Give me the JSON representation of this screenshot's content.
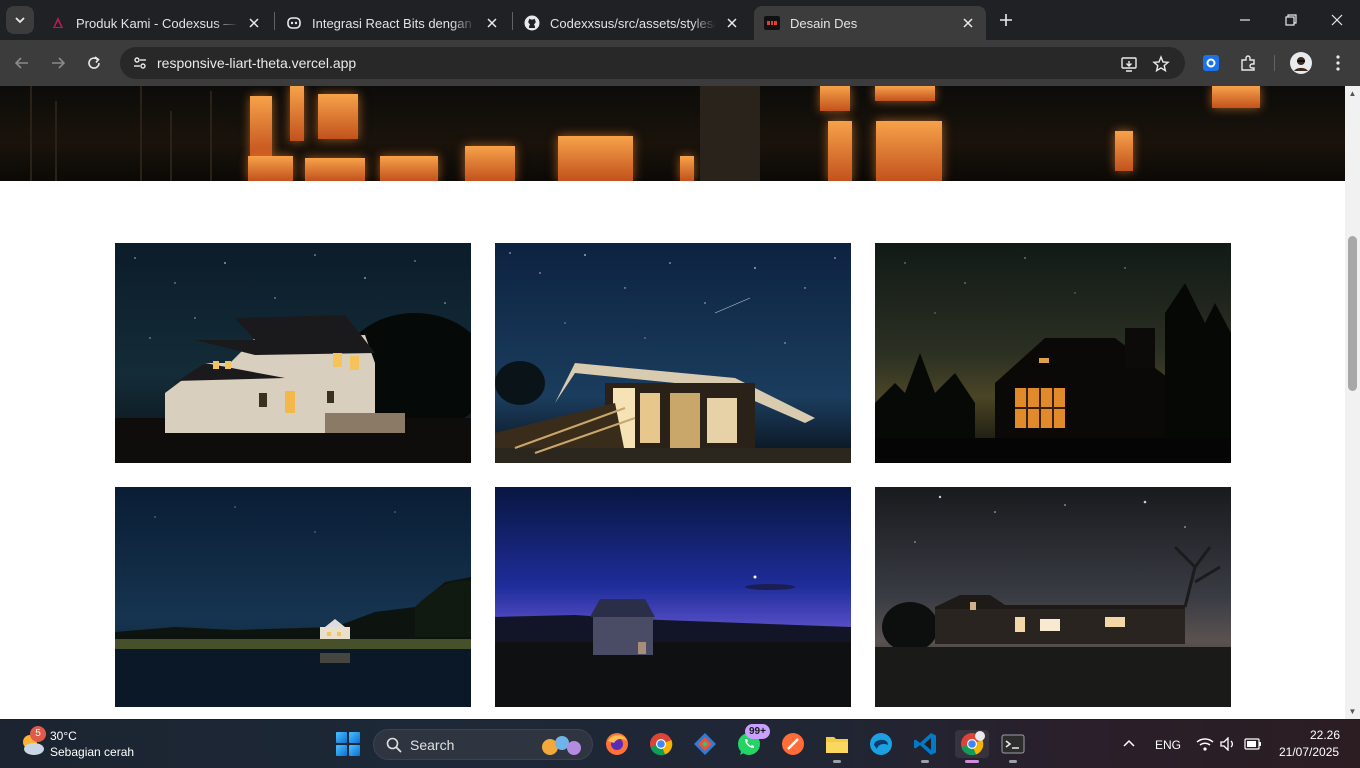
{
  "browser": {
    "tabs": [
      {
        "title": "Produk Kami - Codexsus — Codexsus",
        "favicon": "codexsus-logo-icon",
        "active": false
      },
      {
        "title": "Integrasi React Bits dengan Astro",
        "favicon": "copilot-icon",
        "active": false
      },
      {
        "title": "Codexxsus/src/assets/styles/tailwind",
        "favicon": "github-icon",
        "active": false
      },
      {
        "title": "Desain Des",
        "favicon": "site-favicon-icon",
        "active": true
      }
    ],
    "url": "responsive-liart-theta.vercel.app"
  },
  "page": {
    "hero_alt": "night-house-banner",
    "gallery": [
      {
        "scene": "white-farmhouse-starry-night"
      },
      {
        "scene": "modern-house-meteor-sky"
      },
      {
        "scene": "cabin-window-glow"
      },
      {
        "scene": "lake-house-dusk"
      },
      {
        "scene": "barn-twilight"
      },
      {
        "scene": "ranch-house-starry-night"
      }
    ]
  },
  "taskbar": {
    "weather": {
      "badge": "5",
      "temp": "30°C",
      "desc": "Sebagian cerah"
    },
    "search_label": "Search",
    "whatsapp_badge": "99+",
    "language": "ENG",
    "time": "22.26",
    "date": "21/07/2025"
  },
  "colors": {
    "accent": "#1a73e8",
    "chrome_dark": "#202124",
    "toolbar": "#3c3c3c"
  }
}
